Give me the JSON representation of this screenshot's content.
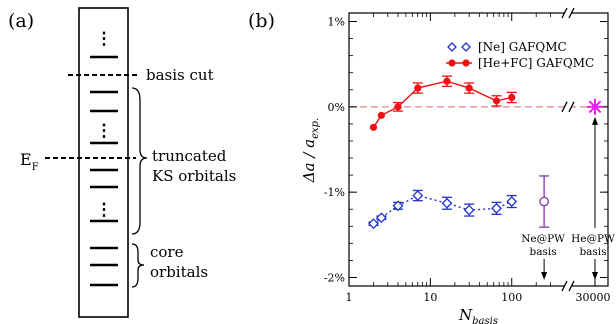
{
  "panel_a": {
    "label": "(a)",
    "basis_cut": "basis cut",
    "truncated_line1": "truncated",
    "truncated_line2": "KS orbitals",
    "ef_main": "E",
    "ef_sub": "F",
    "core_line1": "core",
    "core_line2": "orbitals",
    "dots": "⋮"
  },
  "panel_b": {
    "label": "(b)"
  },
  "chart_data": {
    "type": "scatter",
    "xlabel_main": "N",
    "xlabel_sub": "basis",
    "ylabel_delta": "Δa / a",
    "ylabel_sub": "exp.",
    "x_scale": "log",
    "x_ticks": [
      "1",
      "10",
      "100",
      "30000"
    ],
    "y_ticks": [
      "1%",
      "0%",
      "-1%",
      "-2%"
    ],
    "ylim": [
      -2.1,
      1.1
    ],
    "reference_line": 0,
    "legend_position": "top-right",
    "series": [
      {
        "name": "[Ne] GAFQMC",
        "color": "#2233cc",
        "marker": "open-diamond",
        "points": [
          {
            "x": 2,
            "y": -1.37,
            "err": 0.02
          },
          {
            "x": 2.5,
            "y": -1.3,
            "err": 0.02
          },
          {
            "x": 4,
            "y": -1.16,
            "err": 0.04
          },
          {
            "x": 7,
            "y": -1.04,
            "err": 0.06
          },
          {
            "x": 16,
            "y": -1.13,
            "err": 0.07
          },
          {
            "x": 30,
            "y": -1.21,
            "err": 0.07
          },
          {
            "x": 65,
            "y": -1.19,
            "err": 0.07
          },
          {
            "x": 100,
            "y": -1.11,
            "err": 0.07
          }
        ]
      },
      {
        "name": "[He+FC] GAFQMC",
        "color": "#ee1111",
        "marker": "filled-circle",
        "points": [
          {
            "x": 2,
            "y": -0.24,
            "err": 0.0
          },
          {
            "x": 2.5,
            "y": -0.1,
            "err": 0.0
          },
          {
            "x": 4,
            "y": 0.0,
            "err": 0.05
          },
          {
            "x": 7,
            "y": 0.22,
            "err": 0.06
          },
          {
            "x": 16,
            "y": 0.3,
            "err": 0.06
          },
          {
            "x": 30,
            "y": 0.22,
            "err": 0.06
          },
          {
            "x": 65,
            "y": 0.07,
            "err": 0.06
          },
          {
            "x": 100,
            "y": 0.11,
            "err": 0.06
          }
        ]
      },
      {
        "name": "Ne@PW",
        "color": "#8833aa",
        "marker": "open-circle",
        "points": [
          {
            "x": 250,
            "y": -1.11,
            "err": 0.3
          }
        ]
      },
      {
        "name": "He@PW",
        "color": "#ee22ee",
        "marker": "asterisk",
        "points": [
          {
            "x": 30000,
            "y": 0.0,
            "err": 0.0
          }
        ]
      }
    ],
    "annotations": {
      "ne_pw_line1": "Ne@PW",
      "ne_pw_line2": "basis",
      "he_pw_line1": "He@PW",
      "he_pw_line2": "basis"
    }
  }
}
